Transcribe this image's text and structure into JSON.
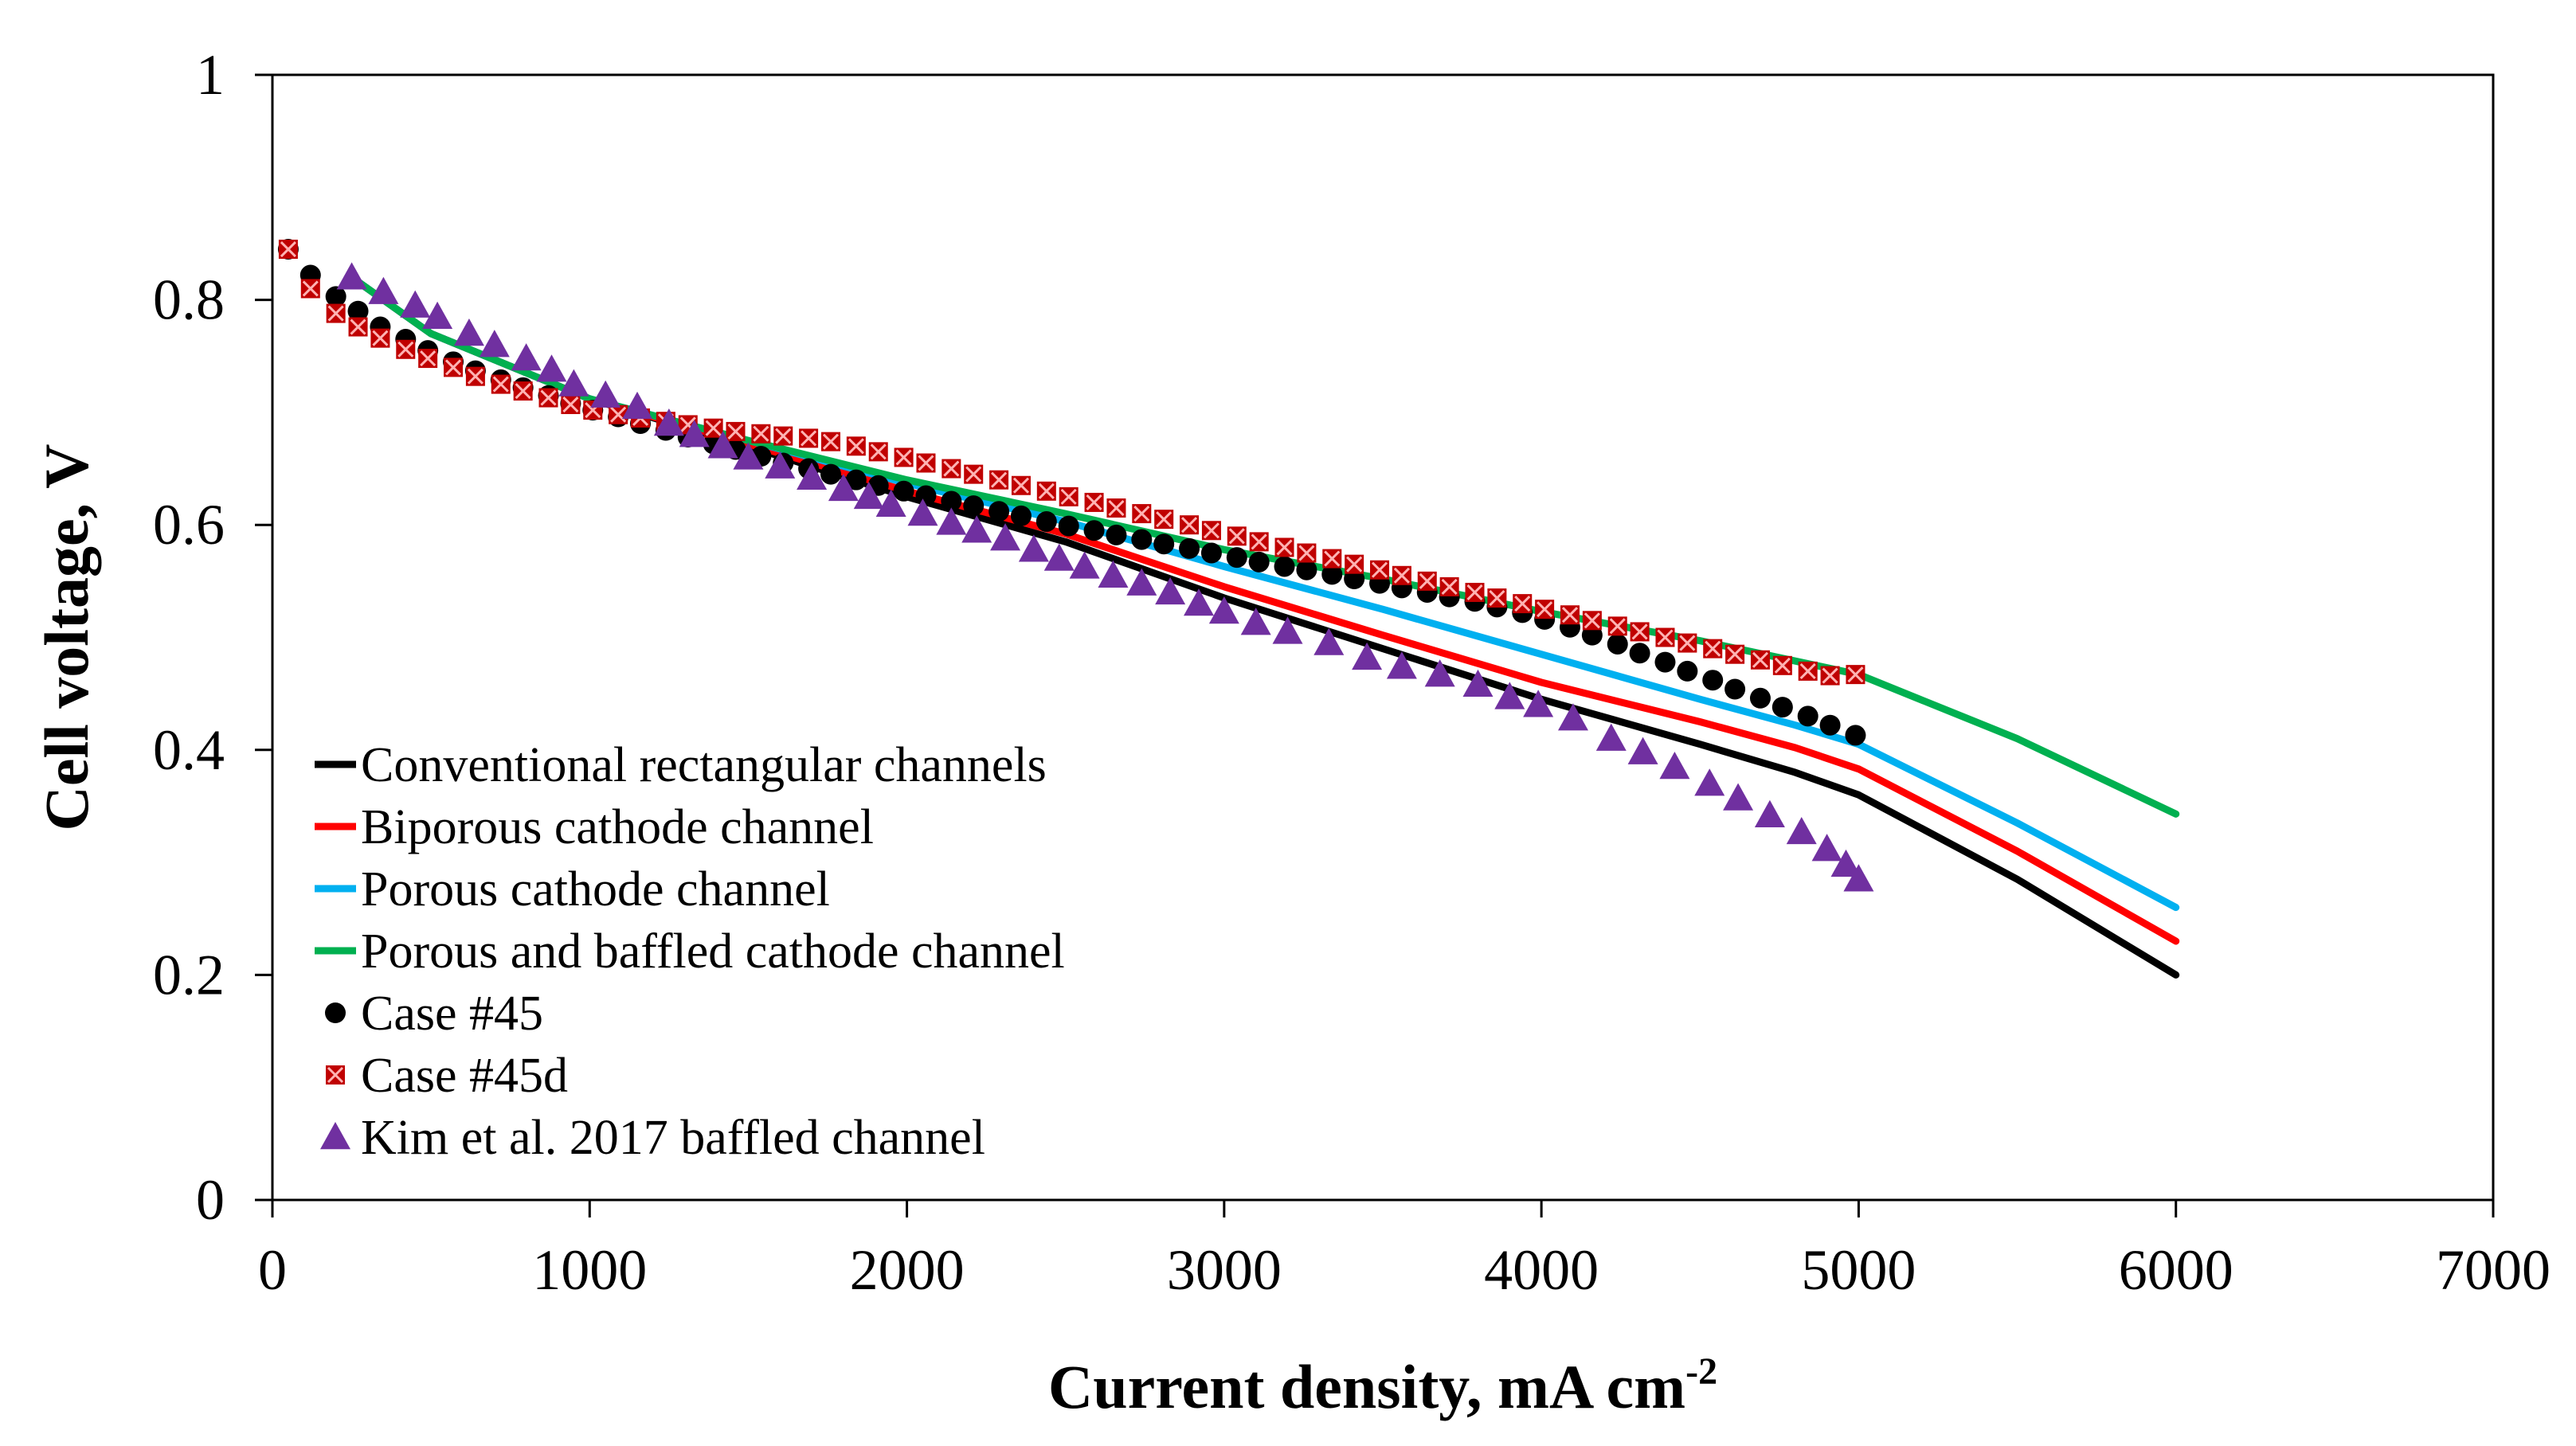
{
  "chart_data": {
    "type": "line",
    "title": "",
    "xlabel": "Current density, mA cm",
    "xlabel_sup": "-2",
    "ylabel": "Cell voltage, V",
    "xlim": [
      0,
      7000
    ],
    "ylim": [
      0,
      1
    ],
    "xticks": [
      0,
      1000,
      2000,
      3000,
      4000,
      5000,
      6000,
      7000
    ],
    "yticks": [
      0,
      0.2,
      0.4,
      0.6,
      0.8,
      1
    ],
    "xtick_labels": [
      "0",
      "1000",
      "2000",
      "3000",
      "4000",
      "5000",
      "6000",
      "7000"
    ],
    "ytick_labels": [
      "0",
      "0.2",
      "0.4",
      "0.6",
      "0.8",
      "1"
    ],
    "legend_position": "bottom-left",
    "series": [
      {
        "name": "Conventional rectangular channels",
        "style": "line",
        "color": "#000000",
        "points": [
          [
            250,
            0.82
          ],
          [
            500,
            0.77
          ],
          [
            1000,
            0.712
          ],
          [
            1500,
            0.67
          ],
          [
            2000,
            0.625
          ],
          [
            2500,
            0.585
          ],
          [
            3000,
            0.535
          ],
          [
            3500,
            0.49
          ],
          [
            4000,
            0.445
          ],
          [
            4500,
            0.405
          ],
          [
            4800,
            0.38
          ],
          [
            5000,
            0.36
          ],
          [
            5500,
            0.285
          ],
          [
            6000,
            0.2
          ]
        ]
      },
      {
        "name": "Biporous cathode channel",
        "style": "line",
        "color": "#ff0000",
        "points": [
          [
            250,
            0.82
          ],
          [
            500,
            0.77
          ],
          [
            1000,
            0.712
          ],
          [
            1500,
            0.672
          ],
          [
            2000,
            0.63
          ],
          [
            2500,
            0.592
          ],
          [
            3000,
            0.545
          ],
          [
            3500,
            0.502
          ],
          [
            4000,
            0.46
          ],
          [
            4500,
            0.425
          ],
          [
            4800,
            0.402
          ],
          [
            5000,
            0.383
          ],
          [
            5500,
            0.31
          ],
          [
            6000,
            0.23
          ]
        ]
      },
      {
        "name": "Porous cathode channel",
        "style": "line",
        "color": "#00b0f0",
        "points": [
          [
            250,
            0.82
          ],
          [
            500,
            0.77
          ],
          [
            1000,
            0.712
          ],
          [
            1500,
            0.675
          ],
          [
            2000,
            0.637
          ],
          [
            2500,
            0.603
          ],
          [
            3000,
            0.563
          ],
          [
            3500,
            0.525
          ],
          [
            4000,
            0.485
          ],
          [
            4500,
            0.445
          ],
          [
            4800,
            0.422
          ],
          [
            5000,
            0.405
          ],
          [
            5500,
            0.335
          ],
          [
            6000,
            0.26
          ]
        ]
      },
      {
        "name": "Porous and baffled cathode channel",
        "style": "line",
        "color": "#00b050",
        "points": [
          [
            250,
            0.82
          ],
          [
            500,
            0.77
          ],
          [
            1000,
            0.712
          ],
          [
            1500,
            0.675
          ],
          [
            2000,
            0.64
          ],
          [
            2500,
            0.61
          ],
          [
            3000,
            0.578
          ],
          [
            3500,
            0.552
          ],
          [
            4000,
            0.523
          ],
          [
            4500,
            0.497
          ],
          [
            5000,
            0.467
          ],
          [
            5500,
            0.41
          ],
          [
            6000,
            0.343
          ]
        ]
      },
      {
        "name": "Case #45",
        "style": "marker",
        "marker": "circle",
        "color": "#000000",
        "points": [
          [
            50,
            0.845
          ],
          [
            120,
            0.822
          ],
          [
            200,
            0.803
          ],
          [
            270,
            0.79
          ],
          [
            340,
            0.776
          ],
          [
            420,
            0.765
          ],
          [
            490,
            0.755
          ],
          [
            570,
            0.745
          ],
          [
            640,
            0.737
          ],
          [
            720,
            0.729
          ],
          [
            790,
            0.722
          ],
          [
            870,
            0.715
          ],
          [
            940,
            0.708
          ],
          [
            1010,
            0.702
          ],
          [
            1090,
            0.696
          ],
          [
            1160,
            0.69
          ],
          [
            1240,
            0.684
          ],
          [
            1310,
            0.678
          ],
          [
            1390,
            0.672
          ],
          [
            1460,
            0.667
          ],
          [
            1540,
            0.661
          ],
          [
            1610,
            0.655
          ],
          [
            1690,
            0.65
          ],
          [
            1760,
            0.645
          ],
          [
            1840,
            0.64
          ],
          [
            1910,
            0.635
          ],
          [
            1990,
            0.63
          ],
          [
            2060,
            0.626
          ],
          [
            2140,
            0.621
          ],
          [
            2210,
            0.617
          ],
          [
            2290,
            0.612
          ],
          [
            2360,
            0.608
          ],
          [
            2440,
            0.603
          ],
          [
            2510,
            0.599
          ],
          [
            2590,
            0.595
          ],
          [
            2660,
            0.591
          ],
          [
            2740,
            0.587
          ],
          [
            2810,
            0.583
          ],
          [
            2890,
            0.579
          ],
          [
            2960,
            0.575
          ],
          [
            3040,
            0.571
          ],
          [
            3110,
            0.567
          ],
          [
            3190,
            0.563
          ],
          [
            3260,
            0.56
          ],
          [
            3340,
            0.556
          ],
          [
            3410,
            0.552
          ],
          [
            3490,
            0.548
          ],
          [
            3560,
            0.544
          ],
          [
            3640,
            0.54
          ],
          [
            3710,
            0.536
          ],
          [
            3790,
            0.532
          ],
          [
            3860,
            0.527
          ],
          [
            3940,
            0.522
          ],
          [
            4010,
            0.516
          ],
          [
            4090,
            0.509
          ],
          [
            4160,
            0.502
          ],
          [
            4240,
            0.494
          ],
          [
            4310,
            0.486
          ],
          [
            4390,
            0.478
          ],
          [
            4460,
            0.47
          ],
          [
            4540,
            0.462
          ],
          [
            4610,
            0.454
          ],
          [
            4690,
            0.446
          ],
          [
            4760,
            0.438
          ],
          [
            4840,
            0.43
          ],
          [
            4910,
            0.422
          ],
          [
            4990,
            0.413
          ]
        ]
      },
      {
        "name": "Case #45d",
        "style": "marker",
        "marker": "x-square",
        "color": "#c00000",
        "points": [
          [
            50,
            0.845
          ],
          [
            120,
            0.81
          ],
          [
            200,
            0.788
          ],
          [
            270,
            0.776
          ],
          [
            340,
            0.766
          ],
          [
            420,
            0.756
          ],
          [
            490,
            0.748
          ],
          [
            570,
            0.74
          ],
          [
            640,
            0.732
          ],
          [
            720,
            0.725
          ],
          [
            790,
            0.719
          ],
          [
            870,
            0.713
          ],
          [
            940,
            0.707
          ],
          [
            1010,
            0.702
          ],
          [
            1090,
            0.698
          ],
          [
            1160,
            0.695
          ],
          [
            1240,
            0.692
          ],
          [
            1310,
            0.689
          ],
          [
            1390,
            0.686
          ],
          [
            1460,
            0.683
          ],
          [
            1540,
            0.681
          ],
          [
            1610,
            0.679
          ],
          [
            1690,
            0.677
          ],
          [
            1760,
            0.674
          ],
          [
            1840,
            0.67
          ],
          [
            1910,
            0.665
          ],
          [
            1990,
            0.66
          ],
          [
            2060,
            0.655
          ],
          [
            2140,
            0.65
          ],
          [
            2210,
            0.645
          ],
          [
            2290,
            0.64
          ],
          [
            2360,
            0.635
          ],
          [
            2440,
            0.63
          ],
          [
            2510,
            0.625
          ],
          [
            2590,
            0.62
          ],
          [
            2660,
            0.615
          ],
          [
            2740,
            0.61
          ],
          [
            2810,
            0.605
          ],
          [
            2890,
            0.6
          ],
          [
            2960,
            0.595
          ],
          [
            3040,
            0.59
          ],
          [
            3110,
            0.585
          ],
          [
            3190,
            0.58
          ],
          [
            3260,
            0.575
          ],
          [
            3340,
            0.57
          ],
          [
            3410,
            0.565
          ],
          [
            3490,
            0.56
          ],
          [
            3560,
            0.555
          ],
          [
            3640,
            0.55
          ],
          [
            3710,
            0.545
          ],
          [
            3790,
            0.54
          ],
          [
            3860,
            0.535
          ],
          [
            3940,
            0.53
          ],
          [
            4010,
            0.525
          ],
          [
            4090,
            0.52
          ],
          [
            4160,
            0.515
          ],
          [
            4240,
            0.51
          ],
          [
            4310,
            0.505
          ],
          [
            4390,
            0.5
          ],
          [
            4460,
            0.495
          ],
          [
            4540,
            0.49
          ],
          [
            4610,
            0.485
          ],
          [
            4690,
            0.48
          ],
          [
            4760,
            0.475
          ],
          [
            4840,
            0.47
          ],
          [
            4910,
            0.466
          ],
          [
            4990,
            0.467
          ]
        ]
      },
      {
        "name": "Kim et al. 2017 baffled channel",
        "style": "marker",
        "marker": "triangle",
        "color": "#7030a0",
        "points": [
          [
            250,
            0.82
          ],
          [
            350,
            0.807
          ],
          [
            450,
            0.795
          ],
          [
            520,
            0.785
          ],
          [
            620,
            0.77
          ],
          [
            700,
            0.76
          ],
          [
            800,
            0.748
          ],
          [
            880,
            0.738
          ],
          [
            950,
            0.725
          ],
          [
            1050,
            0.715
          ],
          [
            1150,
            0.705
          ],
          [
            1250,
            0.69
          ],
          [
            1330,
            0.68
          ],
          [
            1420,
            0.67
          ],
          [
            1500,
            0.66
          ],
          [
            1600,
            0.652
          ],
          [
            1700,
            0.642
          ],
          [
            1800,
            0.632
          ],
          [
            1880,
            0.625
          ],
          [
            1950,
            0.618
          ],
          [
            2050,
            0.61
          ],
          [
            2140,
            0.602
          ],
          [
            2220,
            0.595
          ],
          [
            2310,
            0.588
          ],
          [
            2400,
            0.578
          ],
          [
            2480,
            0.57
          ],
          [
            2560,
            0.563
          ],
          [
            2650,
            0.555
          ],
          [
            2740,
            0.548
          ],
          [
            2830,
            0.54
          ],
          [
            2920,
            0.53
          ],
          [
            3000,
            0.523
          ],
          [
            3100,
            0.513
          ],
          [
            3200,
            0.505
          ],
          [
            3330,
            0.495
          ],
          [
            3450,
            0.482
          ],
          [
            3560,
            0.474
          ],
          [
            3680,
            0.467
          ],
          [
            3800,
            0.458
          ],
          [
            3900,
            0.447
          ],
          [
            3990,
            0.44
          ],
          [
            4100,
            0.428
          ],
          [
            4220,
            0.41
          ],
          [
            4320,
            0.398
          ],
          [
            4420,
            0.385
          ],
          [
            4530,
            0.37
          ],
          [
            4620,
            0.357
          ],
          [
            4720,
            0.342
          ],
          [
            4820,
            0.327
          ],
          [
            4900,
            0.312
          ],
          [
            4960,
            0.298
          ],
          [
            5000,
            0.285
          ]
        ]
      }
    ]
  }
}
